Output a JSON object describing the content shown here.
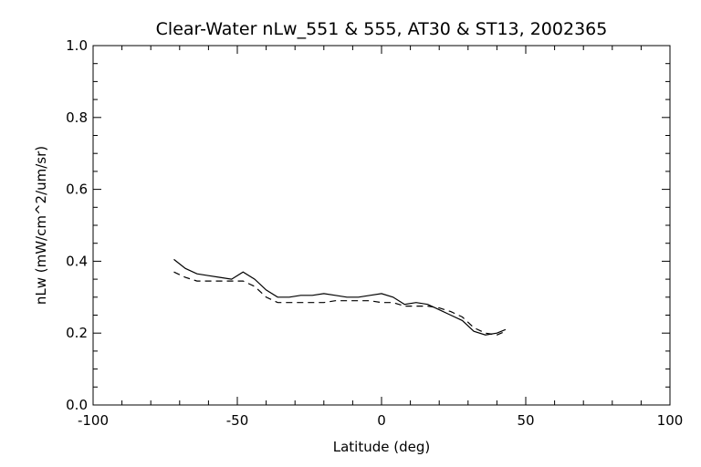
{
  "chart_data": {
    "type": "line",
    "title": "Clear-Water nLw_551 & 555, AT30 & ST13, 2002365",
    "xlabel": "Latitude (deg)",
    "ylabel": "nLw (mW/cm^2/um/sr)",
    "xlim": [
      -100,
      100
    ],
    "ylim": [
      0.0,
      1.0
    ],
    "x_ticks": [
      "-100",
      "-50",
      "0",
      "50",
      "100"
    ],
    "y_ticks": [
      "0.0",
      "0.2",
      "0.4",
      "0.6",
      "0.8",
      "1.0"
    ],
    "grid": false,
    "series": [
      {
        "style": "solid",
        "color": "#000000",
        "x": [
          -72,
          -68,
          -64,
          -60,
          -56,
          -52,
          -48,
          -44,
          -40,
          -36,
          -32,
          -28,
          -24,
          -20,
          -16,
          -12,
          -8,
          -4,
          0,
          4,
          8,
          12,
          16,
          20,
          24,
          28,
          32,
          36,
          40,
          43
        ],
        "y": [
          0.405,
          0.38,
          0.365,
          0.36,
          0.355,
          0.35,
          0.37,
          0.35,
          0.32,
          0.3,
          0.3,
          0.305,
          0.305,
          0.31,
          0.305,
          0.3,
          0.3,
          0.305,
          0.31,
          0.3,
          0.28,
          0.285,
          0.28,
          0.265,
          0.25,
          0.235,
          0.205,
          0.195,
          0.2,
          0.21
        ]
      },
      {
        "style": "dashed",
        "color": "#000000",
        "x": [
          -72,
          -68,
          -64,
          -60,
          -56,
          -52,
          -48,
          -44,
          -40,
          -36,
          -32,
          -28,
          -24,
          -20,
          -16,
          -12,
          -8,
          -4,
          0,
          4,
          8,
          12,
          16,
          20,
          24,
          28,
          32,
          36,
          40,
          43
        ],
        "y": [
          0.37,
          0.355,
          0.345,
          0.345,
          0.345,
          0.345,
          0.345,
          0.33,
          0.3,
          0.285,
          0.285,
          0.285,
          0.285,
          0.285,
          0.29,
          0.29,
          0.29,
          0.29,
          0.285,
          0.285,
          0.275,
          0.275,
          0.275,
          0.27,
          0.26,
          0.245,
          0.215,
          0.2,
          0.195,
          0.205
        ]
      }
    ]
  }
}
